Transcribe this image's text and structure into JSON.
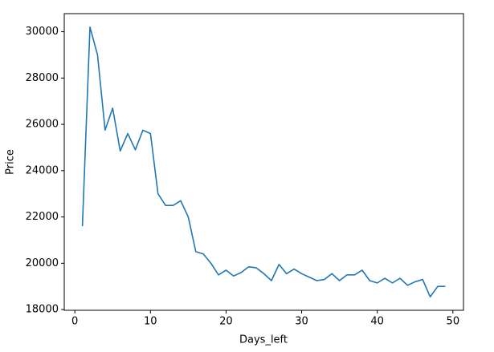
{
  "chart_data": {
    "type": "line",
    "xlabel": "Days_left",
    "ylabel": "Price",
    "x": [
      1,
      2,
      3,
      4,
      5,
      6,
      7,
      8,
      9,
      10,
      11,
      12,
      13,
      14,
      15,
      16,
      17,
      18,
      19,
      20,
      21,
      22,
      23,
      24,
      25,
      26,
      27,
      28,
      29,
      30,
      31,
      32,
      33,
      34,
      35,
      36,
      37,
      38,
      39,
      40,
      41,
      42,
      43,
      44,
      45,
      46,
      47,
      48,
      49
    ],
    "series": [
      {
        "color": "#1f77b4",
        "values": [
          21600,
          30200,
          29000,
          25750,
          26700,
          24850,
          25600,
          24900,
          25750,
          25600,
          23000,
          22500,
          22500,
          22700,
          22000,
          20500,
          20400,
          20000,
          19500,
          19700,
          19450,
          19600,
          19850,
          19800,
          19550,
          19250,
          19950,
          19550,
          19750,
          19550,
          19400,
          19250,
          19300,
          19550,
          19250,
          19500,
          19500,
          19700,
          19250,
          19150,
          19350,
          19150,
          19350,
          19050,
          19200,
          19300,
          18550,
          19000,
          19000
        ]
      }
    ],
    "xlim": [
      -1.4,
      51.4
    ],
    "xticks": [
      0,
      10,
      20,
      30,
      40,
      50
    ],
    "ylim": [
      17968,
      30782
    ],
    "yticks": [
      18000,
      20000,
      22000,
      24000,
      26000,
      28000,
      30000
    ],
    "grid": false
  }
}
